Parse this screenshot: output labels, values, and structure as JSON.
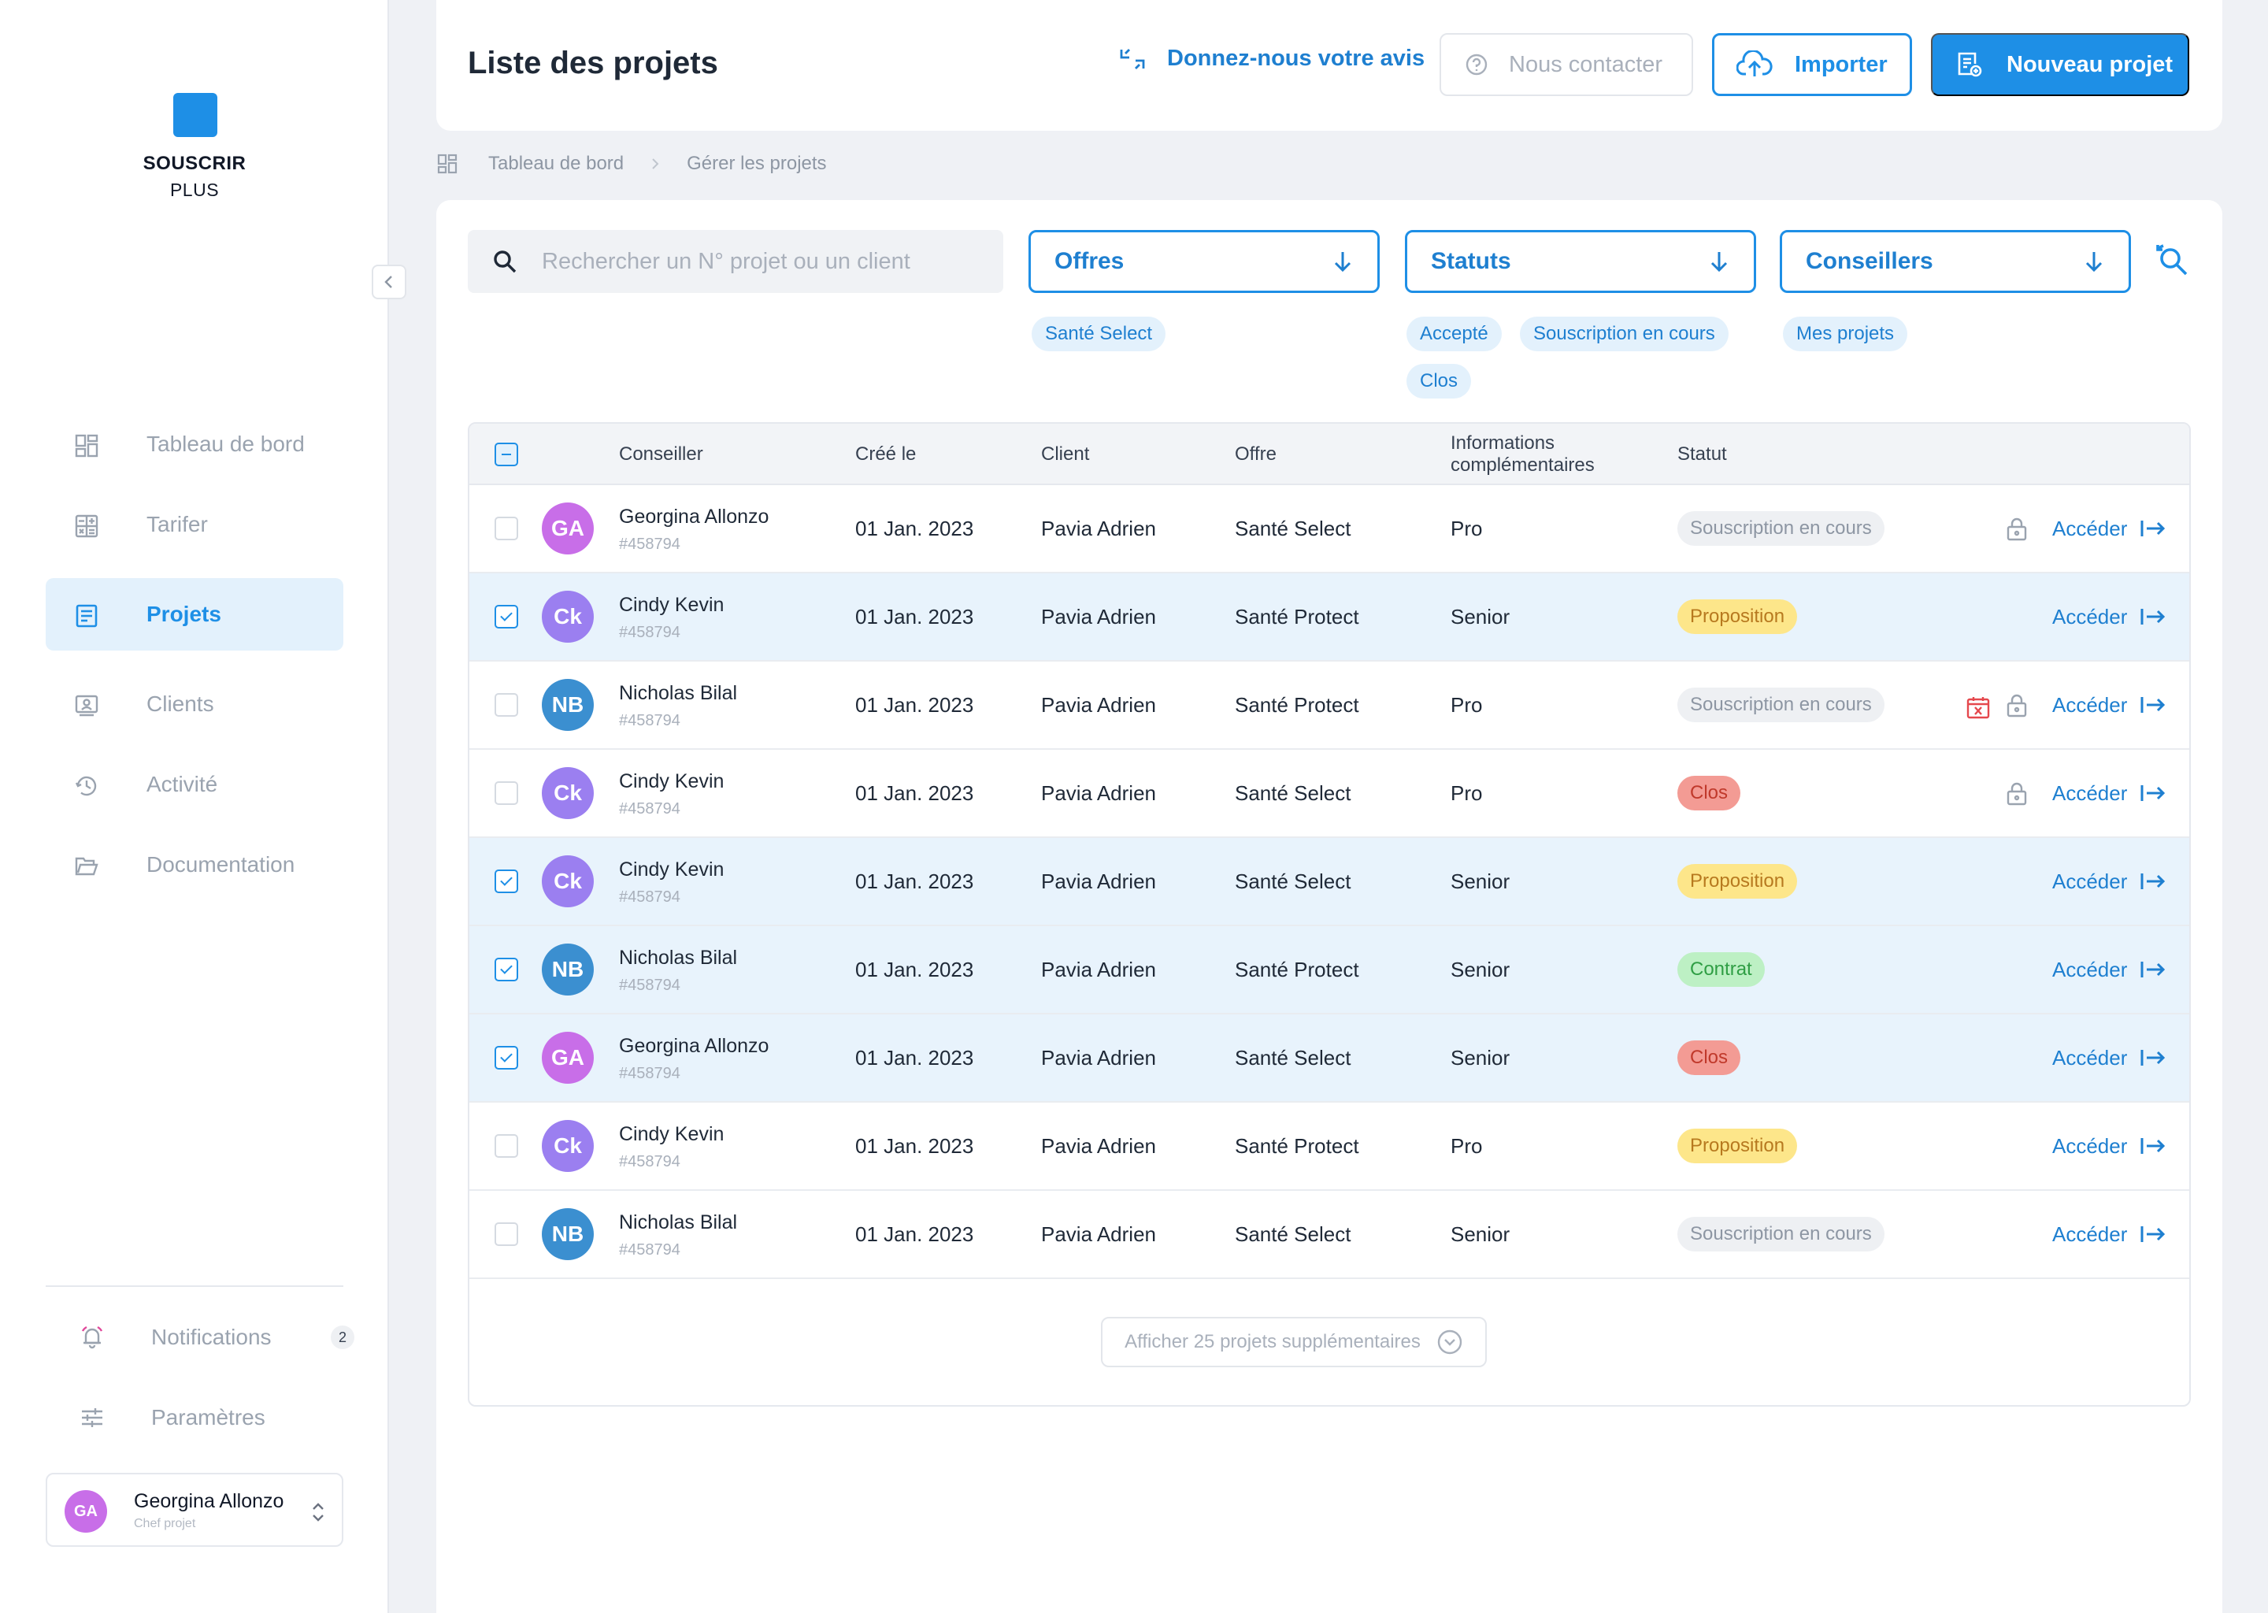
{
  "app": {
    "logo_line1": "SOUSCRIR",
    "logo_line2": "PLUS",
    "accent_color": "#1e8fe6"
  },
  "sidebar": {
    "items": [
      {
        "label": "Tableau de bord",
        "icon": "dashboard-icon",
        "active": false
      },
      {
        "label": "Tarifer",
        "icon": "calculator-icon",
        "active": false
      },
      {
        "label": "Projets",
        "icon": "document-icon",
        "active": true
      },
      {
        "label": "Clients",
        "icon": "client-card-icon",
        "active": false
      },
      {
        "label": "Activité",
        "icon": "activity-icon",
        "active": false
      },
      {
        "label": "Documentation",
        "icon": "folder-icon",
        "active": false
      }
    ],
    "notifications": {
      "label": "Notifications",
      "count": "2"
    },
    "settings": {
      "label": "Paramètres"
    },
    "user": {
      "initials": "GA",
      "name": "Georgina Allonzo",
      "role": "Chef projet"
    }
  },
  "header": {
    "title": "Liste des projets",
    "feedback_label": "Donnez-nous votre avis",
    "contact_label": "Nous contacter",
    "import_label": "Importer",
    "new_project_label": "Nouveau projet"
  },
  "breadcrumb": {
    "items": [
      "Tableau de bord",
      "Gérer les projets"
    ]
  },
  "filters": {
    "search_placeholder": "Rechercher un N° projet ou un client",
    "offres": {
      "label": "Offres",
      "chips": [
        "Santé Select"
      ]
    },
    "statuts": {
      "label": "Statuts",
      "chips": [
        "Accepté",
        "Souscription en cours",
        "Clos"
      ]
    },
    "conseillers": {
      "label": "Conseillers",
      "chips": [
        "Mes projets"
      ]
    }
  },
  "table": {
    "headers": {
      "conseiller": "Conseiller",
      "cree_le": "Créé le",
      "client": "Client",
      "offre": "Offre",
      "info_line1": "Informations",
      "info_line2": "complémentaires",
      "statut": "Statut"
    },
    "access_label": "Accéder",
    "rows": [
      {
        "selected": false,
        "initials": "GA",
        "avatar_color": "#c86ee8",
        "name": "Georgina Allonzo",
        "id": "#458794",
        "date": "01 Jan. 2023",
        "client": "Pavia Adrien",
        "offre": "Santé Select",
        "info": "Pro",
        "status": "Souscription en cours",
        "status_style": "grey",
        "lock": true,
        "calendar_x": false
      },
      {
        "selected": true,
        "initials": "Ck",
        "avatar_color": "#9b7ff0",
        "name": "Cindy Kevin",
        "id": "#458794",
        "date": "01 Jan. 2023",
        "client": "Pavia Adrien",
        "offre": "Santé Protect",
        "info": "Senior",
        "status": "Proposition",
        "status_style": "yellow",
        "lock": false,
        "calendar_x": false
      },
      {
        "selected": false,
        "initials": "NB",
        "avatar_color": "#3b8fd0",
        "name": "Nicholas Bilal",
        "id": "#458794",
        "date": "01 Jan. 2023",
        "client": "Pavia Adrien",
        "offre": "Santé Protect",
        "info": "Pro",
        "status": "Souscription en cours",
        "status_style": "grey",
        "lock": true,
        "calendar_x": true
      },
      {
        "selected": false,
        "initials": "Ck",
        "avatar_color": "#9b7ff0",
        "name": "Cindy Kevin",
        "id": "#458794",
        "date": "01 Jan. 2023",
        "client": "Pavia Adrien",
        "offre": "Santé Select",
        "info": "Pro",
        "status": "Clos",
        "status_style": "red",
        "lock": true,
        "calendar_x": false
      },
      {
        "selected": true,
        "initials": "Ck",
        "avatar_color": "#9b7ff0",
        "name": "Cindy Kevin",
        "id": "#458794",
        "date": "01 Jan. 2023",
        "client": "Pavia Adrien",
        "offre": "Santé Select",
        "info": "Senior",
        "status": "Proposition",
        "status_style": "yellow",
        "lock": false,
        "calendar_x": false
      },
      {
        "selected": true,
        "initials": "NB",
        "avatar_color": "#3b8fd0",
        "name": "Nicholas Bilal",
        "id": "#458794",
        "date": "01 Jan. 2023",
        "client": "Pavia Adrien",
        "offre": "Santé Protect",
        "info": "Senior",
        "status": "Contrat",
        "status_style": "green",
        "lock": false,
        "calendar_x": false
      },
      {
        "selected": true,
        "initials": "GA",
        "avatar_color": "#c86ee8",
        "name": "Georgina Allonzo",
        "id": "#458794",
        "date": "01 Jan. 2023",
        "client": "Pavia Adrien",
        "offre": "Santé Select",
        "info": "Senior",
        "status": "Clos",
        "status_style": "red",
        "lock": false,
        "calendar_x": false
      },
      {
        "selected": false,
        "initials": "Ck",
        "avatar_color": "#9b7ff0",
        "name": "Cindy Kevin",
        "id": "#458794",
        "date": "01 Jan. 2023",
        "client": "Pavia Adrien",
        "offre": "Santé Protect",
        "info": "Pro",
        "status": "Proposition",
        "status_style": "yellow",
        "lock": false,
        "calendar_x": false
      },
      {
        "selected": false,
        "initials": "NB",
        "avatar_color": "#3b8fd0",
        "name": "Nicholas Bilal",
        "id": "#458794",
        "date": "01 Jan. 2023",
        "client": "Pavia Adrien",
        "offre": "Santé Select",
        "info": "Senior",
        "status": "Souscription en cours",
        "status_style": "grey",
        "lock": false,
        "calendar_x": false
      }
    ],
    "more_label": "Afficher 25 projets supplémentaires"
  }
}
